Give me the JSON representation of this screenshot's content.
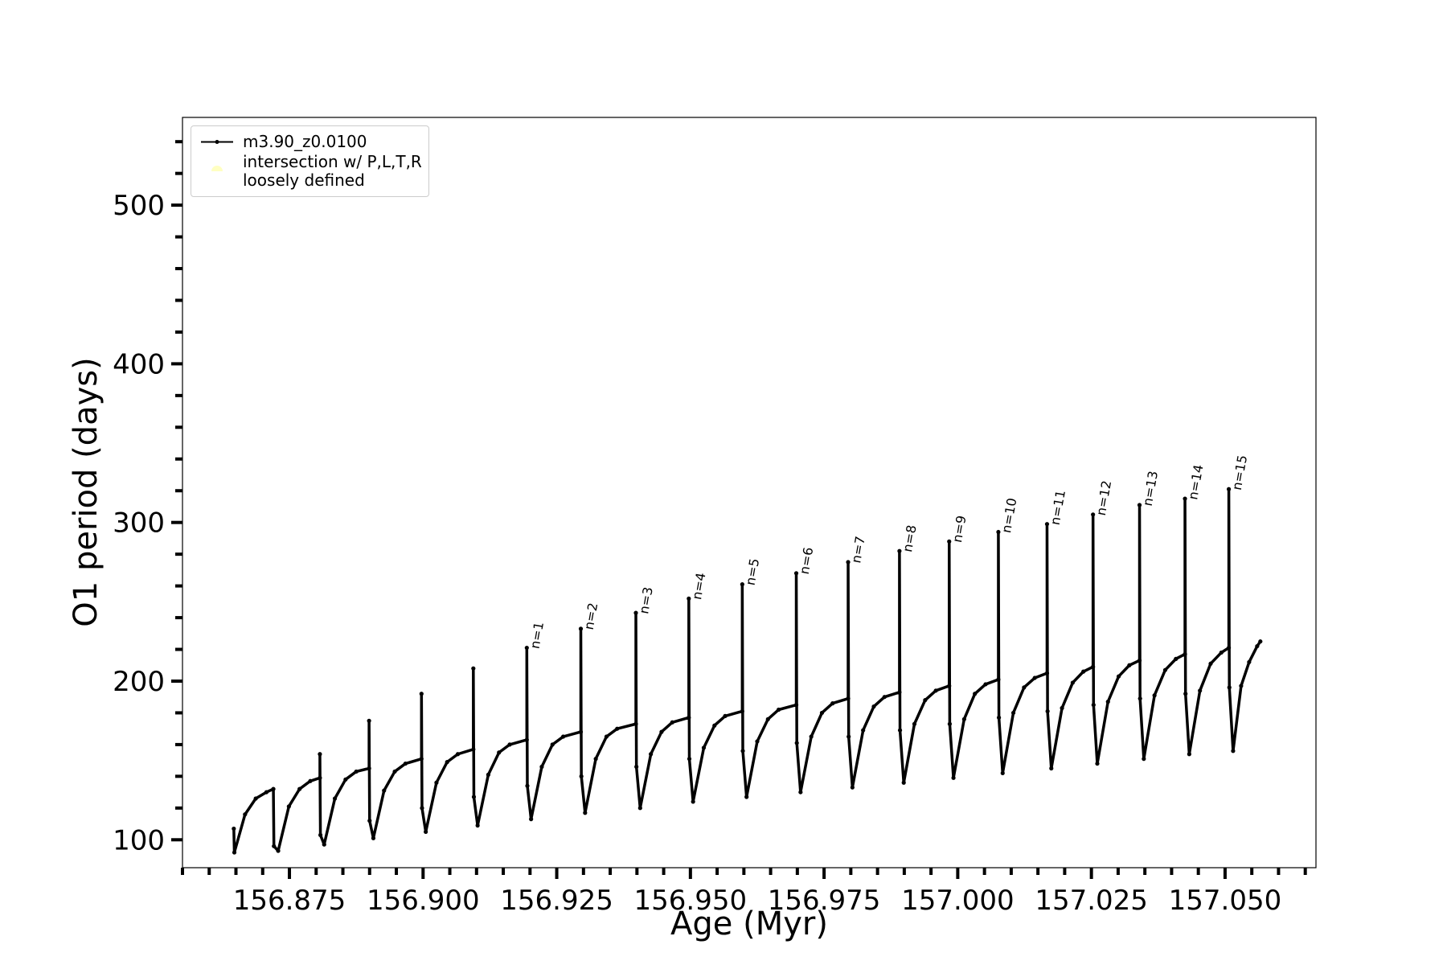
{
  "chart_data": {
    "type": "line",
    "xlabel": "Age (Myr)",
    "ylabel": "O1 period (days)",
    "xlim": [
      156.855,
      157.067
    ],
    "ylim": [
      82.4,
      555.3
    ],
    "xticks": [
      156.875,
      {
        "value": 156.9,
        "label": "156.900"
      },
      156.925,
      {
        "value": 156.95,
        "label": "156.950"
      },
      156.975,
      {
        "value": 157,
        "label": "157.000"
      },
      157.025,
      {
        "value": 157.05,
        "label": "157.050"
      }
    ],
    "xminorticks": [
      156.855,
      156.86,
      156.865,
      156.87,
      156.88,
      156.885,
      156.89,
      156.895,
      156.905,
      156.91,
      156.915,
      156.92,
      156.93,
      156.935,
      156.94,
      156.945,
      156.955,
      156.96,
      156.965,
      156.97,
      156.98,
      156.985,
      156.99,
      156.995,
      157.005,
      157.01,
      157.015,
      157.02,
      157.03,
      157.035,
      157.04,
      157.045,
      157.055,
      157.06,
      157.065
    ],
    "yticks": [
      100,
      200,
      300,
      400,
      500
    ],
    "yminorticks": [
      120,
      140,
      160,
      180,
      220,
      240,
      260,
      280,
      320,
      340,
      360,
      380,
      420,
      440,
      460,
      480,
      520,
      540
    ],
    "legend": "upper left",
    "series": [
      {
        "name": "m3.90_z0.0100",
        "type": "line",
        "color": "#000000",
        "x": [
          156.8646,
          156.8647,
          156.8667,
          156.8687,
          156.8707,
          156.872,
          156.8721,
          156.8729,
          156.8749,
          156.8769,
          156.8789,
          156.8807,
          156.8807,
          156.8808,
          156.8815,
          156.8835,
          156.8855,
          156.8875,
          156.8899,
          156.8899,
          156.89,
          156.8907,
          156.8927,
          156.8947,
          156.8967,
          156.8997,
          156.8997,
          156.8998,
          156.9005,
          156.9025,
          156.9045,
          156.9065,
          156.9094,
          156.9094,
          156.9095,
          156.9102,
          156.9122,
          156.9142,
          156.9162,
          156.9194,
          156.9194,
          156.9195,
          156.9202,
          156.9222,
          156.9242,
          156.9262,
          156.9295,
          156.9295,
          156.9296,
          156.9303,
          156.9323,
          156.9343,
          156.9363,
          156.9398,
          156.9398,
          156.9399,
          156.9406,
          156.9426,
          156.9446,
          156.9466,
          156.9497,
          156.9497,
          156.9498,
          156.9505,
          156.9525,
          156.9545,
          156.9565,
          156.9597,
          156.9597,
          156.9598,
          156.9605,
          156.9625,
          156.9645,
          156.9665,
          156.9698,
          156.9698,
          156.9699,
          156.9706,
          156.9726,
          156.9746,
          156.9766,
          156.9795,
          156.9795,
          156.9796,
          156.9803,
          156.9823,
          156.9843,
          156.9863,
          156.9891,
          156.9891,
          156.9892,
          156.9899,
          156.9919,
          156.9939,
          156.9959,
          156.9984,
          156.9984,
          156.9985,
          156.9992,
          157.0012,
          157.0032,
          157.0052,
          157.0076,
          157.0076,
          157.0077,
          157.0084,
          157.0104,
          157.0124,
          157.0144,
          157.0167,
          157.0167,
          157.0168,
          157.0175,
          157.0195,
          157.0215,
          157.0235,
          157.0253,
          157.0253,
          157.0254,
          157.0261,
          157.0281,
          157.0301,
          157.0321,
          157.034,
          157.034,
          157.0341,
          157.0348,
          157.0368,
          157.0388,
          157.0408,
          157.0425,
          157.0425,
          157.0426,
          157.0433,
          157.0453,
          157.0473,
          157.0493,
          157.0507,
          157.0507,
          157.0508,
          157.0515,
          157.053,
          157.0545,
          157.056,
          157.0566
        ],
        "values": [
          107,
          92,
          116,
          126,
          130,
          132,
          96,
          93,
          121,
          132,
          137,
          139,
          154,
          103,
          97,
          126,
          138,
          143,
          145,
          175,
          112,
          101,
          131,
          143,
          148,
          151,
          192,
          120,
          105,
          136,
          149,
          154,
          157,
          208,
          127,
          109,
          141,
          155,
          160,
          163,
          221,
          134,
          113,
          146,
          160,
          165,
          168,
          233,
          140,
          117,
          151,
          165,
          170,
          173,
          243,
          146,
          120,
          154,
          168,
          174,
          177,
          252,
          151,
          124,
          158,
          172,
          178,
          181,
          261,
          156,
          127,
          162,
          176,
          182,
          185,
          268,
          161,
          130,
          165,
          180,
          186,
          189,
          275,
          165,
          133,
          169,
          184,
          190,
          193,
          282,
          169,
          136,
          173,
          188,
          194,
          197,
          288,
          173,
          139,
          176,
          192,
          198,
          201,
          294,
          177,
          142,
          180,
          196,
          202,
          205,
          299,
          181,
          145,
          183,
          199,
          206,
          209,
          305,
          185,
          148,
          187,
          203,
          210,
          213,
          311,
          189,
          151,
          191,
          207,
          214,
          217,
          315,
          192,
          154,
          194,
          211,
          218,
          221,
          321,
          196,
          156,
          197,
          212,
          222,
          225
        ]
      },
      {
        "name": "intersection w/ P,L,T,R\nloosely defined",
        "type": "scatter",
        "color": "#ffffb3",
        "x": [],
        "values": []
      }
    ],
    "annotations": [
      {
        "text": "n=1",
        "x": 156.9194,
        "y": 221
      },
      {
        "text": "n=2",
        "x": 156.9295,
        "y": 233
      },
      {
        "text": "n=3",
        "x": 156.9398,
        "y": 243
      },
      {
        "text": "n=4",
        "x": 156.9497,
        "y": 252
      },
      {
        "text": "n=5",
        "x": 156.9597,
        "y": 261
      },
      {
        "text": "n=6",
        "x": 156.9698,
        "y": 268
      },
      {
        "text": "n=7",
        "x": 156.9795,
        "y": 275
      },
      {
        "text": "n=8",
        "x": 156.9891,
        "y": 282
      },
      {
        "text": "n=9",
        "x": 156.9984,
        "y": 288
      },
      {
        "text": "n=10",
        "x": 157.0076,
        "y": 294
      },
      {
        "text": "n=11",
        "x": 157.0167,
        "y": 299
      },
      {
        "text": "n=12",
        "x": 157.0253,
        "y": 305
      },
      {
        "text": "n=13",
        "x": 157.034,
        "y": 311
      },
      {
        "text": "n=14",
        "x": 157.0425,
        "y": 315
      },
      {
        "text": "n=15",
        "x": 157.0507,
        "y": 321
      }
    ]
  }
}
